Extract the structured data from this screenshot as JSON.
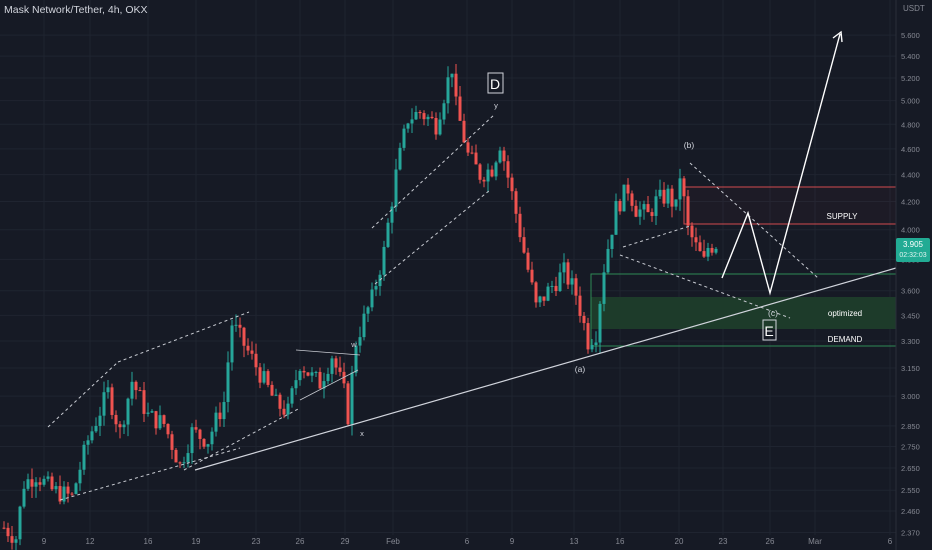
{
  "chart_title": "Mask Network/Tether, 4h, OKX",
  "currency": "USDT",
  "current_price": "3.905",
  "countdown": "02:32:03",
  "colors": {
    "background": "#161a25",
    "up": "#26a69a",
    "down": "#ef5350",
    "grid": "#1f2430",
    "axis_text": "#868993",
    "annotation": "#d1d4dc",
    "supply": "#d14b4f",
    "demand": "#2f8a55",
    "demand_fill": "#1d3b2a"
  },
  "chart_data": {
    "type": "candlestick",
    "timeframe": "4h",
    "y_scale": "log",
    "ylim": [
      2.36,
      5.95
    ],
    "yticks": [
      "2.370",
      "2.460",
      "2.550",
      "2.650",
      "2.750",
      "2.850",
      "3.000",
      "3.150",
      "3.300",
      "3.450",
      "3.600",
      "3.800",
      "4.000",
      "4.200",
      "4.400",
      "4.600",
      "4.800",
      "5.000",
      "5.200",
      "5.400",
      "5.600"
    ],
    "x_tick_labels": [
      "9",
      "12",
      "16",
      "19",
      "23",
      "26",
      "29",
      "Feb",
      "6",
      "9",
      "13",
      "16",
      "20",
      "23",
      "26",
      "Mar",
      "6"
    ],
    "close_path": [
      [
        0,
        2.39
      ],
      [
        3,
        2.35
      ],
      [
        5,
        2.58
      ],
      [
        8,
        2.62
      ],
      [
        12,
        2.55
      ],
      [
        17,
        2.52
      ],
      [
        21,
        2.78
      ],
      [
        26,
        3.02
      ],
      [
        29,
        2.82
      ],
      [
        32,
        3.08
      ],
      [
        36,
        2.9
      ],
      [
        40,
        2.86
      ],
      [
        44,
        2.66
      ],
      [
        47,
        2.82
      ],
      [
        51,
        2.78
      ],
      [
        55,
        2.97
      ],
      [
        57,
        3.4
      ],
      [
        60,
        3.28
      ],
      [
        64,
        3.12
      ],
      [
        68,
        2.96
      ],
      [
        71,
        2.92
      ],
      [
        74,
        3.18
      ],
      [
        77,
        3.1
      ],
      [
        79,
        3.07
      ],
      [
        82,
        3.22
      ],
      [
        85,
        3.02
      ],
      [
        86,
        2.9
      ],
      [
        88,
        3.3
      ],
      [
        92,
        3.55
      ],
      [
        95,
        3.85
      ],
      [
        98,
        4.4
      ],
      [
        101,
        4.85
      ],
      [
        104,
        4.9
      ],
      [
        108,
        4.8
      ],
      [
        110,
        5.05
      ],
      [
        112,
        5.3
      ],
      [
        113,
        4.95
      ],
      [
        116,
        4.55
      ],
      [
        119,
        4.4
      ],
      [
        122,
        4.45
      ],
      [
        124,
        4.65
      ],
      [
        127,
        4.25
      ],
      [
        130,
        3.85
      ],
      [
        133,
        3.5
      ],
      [
        137,
        3.63
      ],
      [
        140,
        3.72
      ],
      [
        143,
        3.58
      ],
      [
        146,
        3.3
      ],
      [
        148,
        3.35
      ],
      [
        150,
        3.75
      ],
      [
        153,
        4.15
      ],
      [
        156,
        4.3
      ],
      [
        158,
        4.15
      ],
      [
        161,
        4.1
      ],
      [
        163,
        4.2
      ],
      [
        166,
        4.25
      ],
      [
        168,
        4.15
      ],
      [
        169,
        4.4
      ],
      [
        171,
        4.0
      ],
      [
        173,
        3.88
      ],
      [
        175,
        3.78
      ],
      [
        176,
        3.88
      ],
      [
        178,
        3.905
      ]
    ],
    "annotations": {
      "waves": [
        "w",
        "x",
        "y",
        "(a)",
        "(b)",
        "(c)"
      ],
      "wave_labels_boxed": [
        "D",
        "E"
      ],
      "zones": [
        "SUPPLY",
        "optimized",
        "DEMAND"
      ]
    }
  }
}
